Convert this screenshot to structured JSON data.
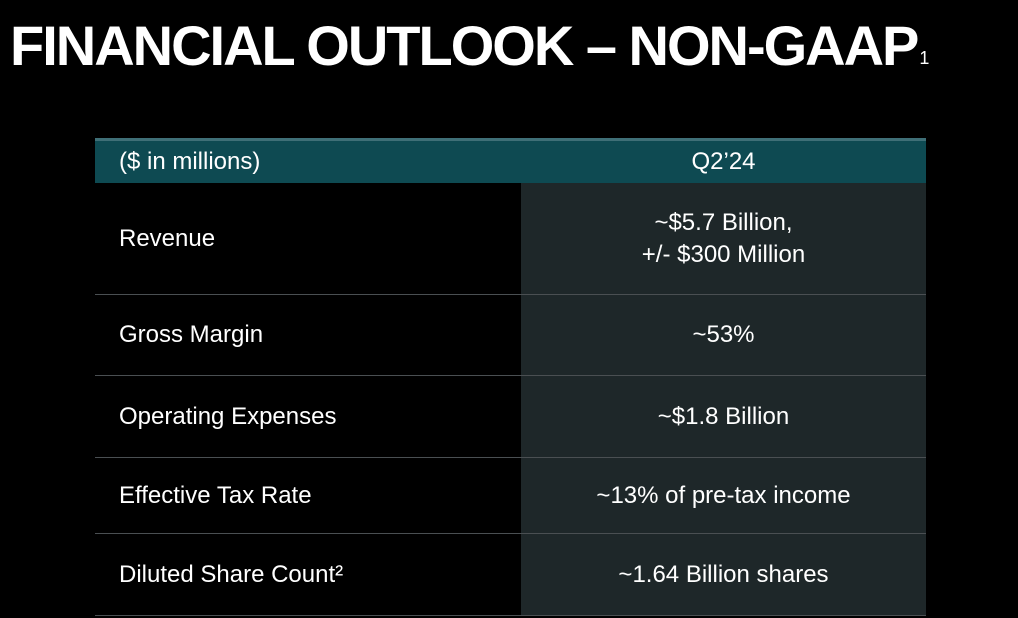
{
  "title": {
    "text": "FINANCIAL OUTLOOK – NON-GAAP",
    "footnote_marker": "1"
  },
  "table": {
    "header": {
      "label": "($ in millions)",
      "period": "Q2’24"
    },
    "rows": [
      {
        "label": "Revenue",
        "value_lines": [
          "~$5.7 Billion,",
          "+/- $300 Million"
        ]
      },
      {
        "label": "Gross Margin",
        "value_lines": [
          "~53%"
        ]
      },
      {
        "label": "Operating Expenses",
        "value_lines": [
          "~$1.8 Billion"
        ]
      },
      {
        "label": "Effective Tax Rate",
        "value_lines": [
          "~13% of pre-tax income"
        ]
      },
      {
        "label": "Diluted Share Count²",
        "value_lines": [
          "~1.64 Billion shares"
        ]
      }
    ]
  },
  "colors": {
    "background": "#000000",
    "header_fill": "#0e4a52",
    "value_column_fill": "#1e2729",
    "text": "#ffffff"
  }
}
